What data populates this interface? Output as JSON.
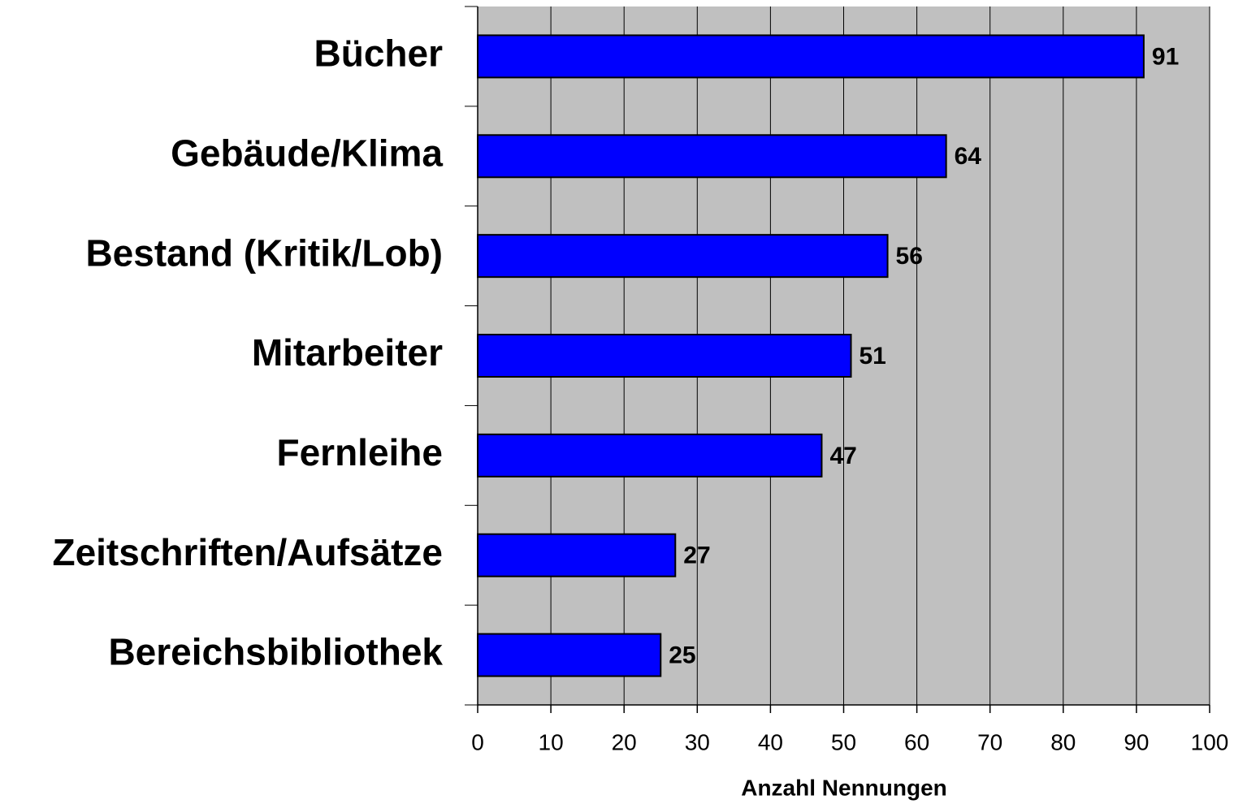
{
  "chart_data": {
    "type": "bar",
    "orientation": "horizontal",
    "x_label": "Anzahl Nennungen",
    "categories": [
      "Bücher",
      "Gebäude/Klima",
      "Bestand (Kritik/Lob)",
      "Mitarbeiter",
      "Fernleihe",
      "Zeitschriften/Aufsätze",
      "Bereichsbibliothek"
    ],
    "values": [
      91,
      64,
      56,
      51,
      47,
      27,
      25
    ],
    "color": "#0000ff",
    "plot_background": "#c0c0c0",
    "xlim": [
      0,
      100
    ],
    "xticks": [
      0,
      10,
      20,
      30,
      40,
      50,
      60,
      70,
      80,
      90,
      100
    ],
    "grid": true
  }
}
